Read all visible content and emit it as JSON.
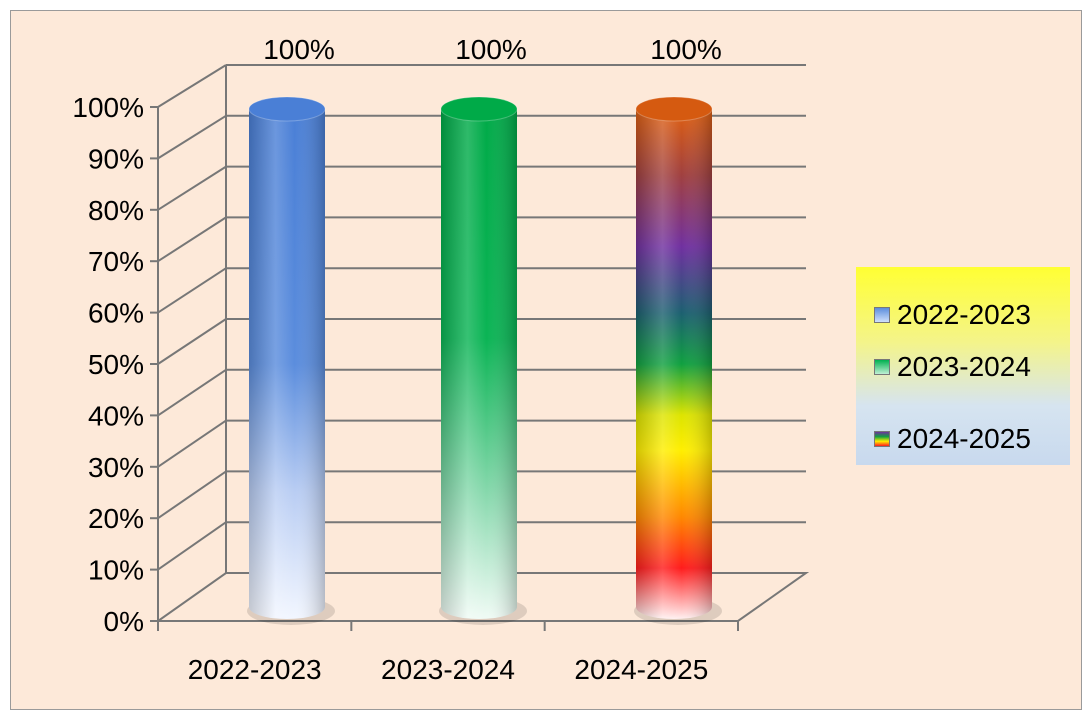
{
  "chart_data": {
    "type": "bar",
    "categories": [
      "2022-2023",
      "2023-2024",
      "2024-2025"
    ],
    "series": [
      {
        "name": "2022-2023",
        "values": [
          100,
          null,
          null
        ]
      },
      {
        "name": "2023-2024",
        "values": [
          null,
          100,
          null
        ]
      },
      {
        "name": "2024-2025",
        "values": [
          null,
          null,
          100
        ]
      }
    ],
    "values": [
      100,
      100,
      100
    ],
    "data_labels": [
      "100%",
      "100%",
      "100%"
    ],
    "y_ticks": [
      "0%",
      "10%",
      "20%",
      "30%",
      "40%",
      "50%",
      "60%",
      "70%",
      "80%",
      "90%",
      "100%"
    ],
    "ylim": [
      0,
      100
    ],
    "title": "",
    "xlabel": "",
    "ylabel": "",
    "style": "3d-cylinder",
    "grid": true,
    "legend_position": "right",
    "colors": {
      "2022-2023": "#4f81d4",
      "2023-2024": "#00b050",
      "2024-2025": "#e46c0a"
    }
  }
}
